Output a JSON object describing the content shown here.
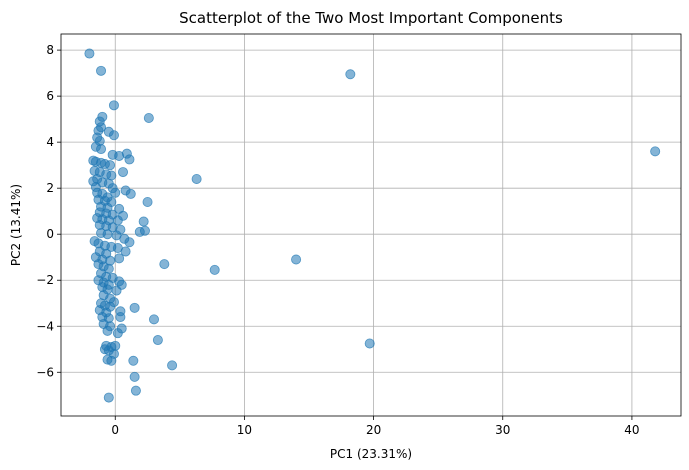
{
  "chart_data": {
    "type": "scatter",
    "title": "Scatterplot of the Two Most Important Components",
    "xlabel": "PC1 (23.31%)",
    "ylabel": "PC2 (13.41%)",
    "xlim": [
      -4.2,
      43.8
    ],
    "ylim": [
      -7.9,
      8.7
    ],
    "xticks": [
      0,
      10,
      20,
      30,
      40
    ],
    "yticks": [
      -6,
      -4,
      -2,
      0,
      2,
      4,
      6,
      8
    ],
    "grid": true,
    "marker_color": "#1f77b4",
    "marker_alpha": 0.55,
    "points": [
      [
        -2.0,
        7.85
      ],
      [
        -1.1,
        7.1
      ],
      [
        18.2,
        6.95
      ],
      [
        41.8,
        3.6
      ],
      [
        -1.0,
        5.1
      ],
      [
        -1.2,
        4.9
      ],
      [
        -1.1,
        4.65
      ],
      [
        -1.3,
        4.5
      ],
      [
        -0.5,
        4.45
      ],
      [
        -0.1,
        4.3
      ],
      [
        -1.4,
        4.2
      ],
      [
        -1.2,
        4.05
      ],
      [
        -1.5,
        3.8
      ],
      [
        -1.1,
        3.7
      ],
      [
        -0.2,
        3.45
      ],
      [
        0.3,
        3.4
      ],
      [
        0.9,
        3.5
      ],
      [
        1.1,
        3.25
      ],
      [
        -1.7,
        3.2
      ],
      [
        -1.5,
        3.15
      ],
      [
        -1.1,
        3.1
      ],
      [
        -0.8,
        3.05
      ],
      [
        -0.4,
        3.0
      ],
      [
        -1.6,
        2.75
      ],
      [
        -1.2,
        2.7
      ],
      [
        0.6,
        2.7
      ],
      [
        -0.7,
        2.6
      ],
      [
        -0.3,
        2.55
      ],
      [
        -1.4,
        2.4
      ],
      [
        -1.7,
        2.3
      ],
      [
        -1.0,
        2.25
      ],
      [
        -0.5,
        2.2
      ],
      [
        -1.5,
        2.05
      ],
      [
        -0.2,
        2.0
      ],
      [
        0.0,
        1.8
      ],
      [
        0.8,
        1.9
      ],
      [
        1.2,
        1.75
      ],
      [
        -1.4,
        1.8
      ],
      [
        -1.0,
        1.75
      ],
      [
        -0.6,
        1.6
      ],
      [
        -1.3,
        1.5
      ],
      [
        -0.8,
        1.45
      ],
      [
        -0.3,
        1.4
      ],
      [
        2.5,
        1.4
      ],
      [
        -1.1,
        1.2
      ],
      [
        -0.6,
        1.15
      ],
      [
        0.3,
        1.1
      ],
      [
        -1.2,
        0.95
      ],
      [
        -0.7,
        0.9
      ],
      [
        -0.2,
        0.85
      ],
      [
        0.6,
        0.8
      ],
      [
        -1.4,
        0.7
      ],
      [
        -1.0,
        0.65
      ],
      [
        -0.5,
        0.6
      ],
      [
        0.2,
        0.6
      ],
      [
        2.2,
        0.55
      ],
      [
        -1.2,
        0.4
      ],
      [
        -0.7,
        0.35
      ],
      [
        -0.2,
        0.3
      ],
      [
        0.4,
        0.2
      ],
      [
        1.9,
        0.1
      ],
      [
        2.3,
        0.15
      ],
      [
        -1.1,
        0.05
      ],
      [
        -0.6,
        0.0
      ],
      [
        0.1,
        -0.05
      ],
      [
        0.7,
        -0.2
      ],
      [
        1.1,
        -0.35
      ],
      [
        -1.6,
        -0.3
      ],
      [
        -1.3,
        -0.4
      ],
      [
        -0.8,
        -0.5
      ],
      [
        -0.3,
        -0.55
      ],
      [
        0.2,
        -0.6
      ],
      [
        -1.2,
        -0.75
      ],
      [
        -0.7,
        -0.85
      ],
      [
        0.8,
        -0.75
      ],
      [
        -1.5,
        -1.0
      ],
      [
        -1.0,
        -1.1
      ],
      [
        -0.4,
        -1.15
      ],
      [
        0.3,
        -1.05
      ],
      [
        3.8,
        -1.3
      ],
      [
        7.7,
        -1.55
      ],
      [
        14.0,
        -1.1
      ],
      [
        -1.3,
        -1.3
      ],
      [
        -0.9,
        -1.4
      ],
      [
        -0.5,
        -1.5
      ],
      [
        -1.1,
        -1.7
      ],
      [
        -0.7,
        -1.85
      ],
      [
        -0.2,
        -1.9
      ],
      [
        -1.3,
        -2.0
      ],
      [
        -0.9,
        -2.1
      ],
      [
        -0.5,
        -2.2
      ],
      [
        0.3,
        -2.05
      ],
      [
        0.5,
        -2.2
      ],
      [
        -1.0,
        -2.3
      ],
      [
        -0.6,
        -2.4
      ],
      [
        0.1,
        -2.45
      ],
      [
        -0.9,
        -2.65
      ],
      [
        -0.4,
        -2.8
      ],
      [
        -0.1,
        -2.95
      ],
      [
        -1.1,
        -3.0
      ],
      [
        -0.8,
        -3.1
      ],
      [
        -0.4,
        -3.15
      ],
      [
        1.5,
        -3.2
      ],
      [
        -1.2,
        -3.3
      ],
      [
        -0.7,
        -3.4
      ],
      [
        0.4,
        -3.35
      ],
      [
        -1.0,
        -3.6
      ],
      [
        -0.5,
        -3.65
      ],
      [
        0.4,
        -3.6
      ],
      [
        3.0,
        -3.7
      ],
      [
        -0.9,
        -3.9
      ],
      [
        -0.4,
        -4.0
      ],
      [
        0.5,
        -4.1
      ],
      [
        -0.6,
        -4.2
      ],
      [
        0.2,
        -4.3
      ],
      [
        3.3,
        -4.6
      ],
      [
        19.7,
        -4.75
      ],
      [
        -0.7,
        -4.85
      ],
      [
        -0.3,
        -4.9
      ],
      [
        0.0,
        -4.85
      ],
      [
        -0.8,
        -5.0
      ],
      [
        -0.5,
        -5.05
      ],
      [
        -0.1,
        -5.2
      ],
      [
        -0.6,
        -5.45
      ],
      [
        -0.3,
        -5.5
      ],
      [
        1.4,
        -5.5
      ],
      [
        4.4,
        -5.7
      ],
      [
        1.5,
        -6.2
      ],
      [
        1.6,
        -6.8
      ],
      [
        -0.5,
        -7.1
      ],
      [
        6.3,
        2.4
      ],
      [
        2.6,
        5.05
      ],
      [
        -0.1,
        5.6
      ]
    ]
  }
}
